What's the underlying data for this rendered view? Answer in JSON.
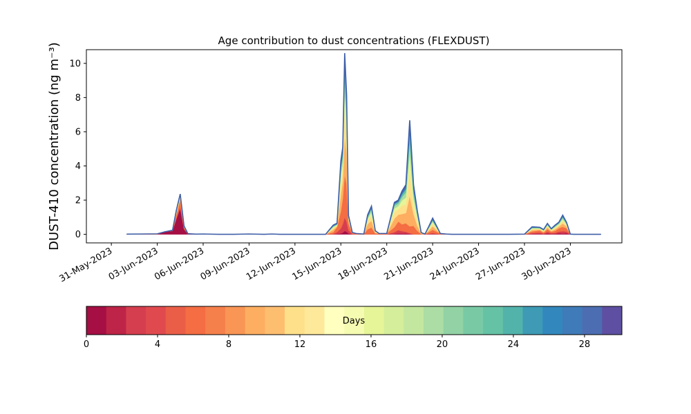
{
  "chart_data": {
    "type": "area",
    "stacked": true,
    "title": "Age contribution to dust concentrations (FLEXDUST)",
    "xlabel": "",
    "ylabel": "DUST-410 concentration (ng m⁻³)",
    "ylim": [
      -0.5,
      10.8
    ],
    "yticks": [
      0,
      2,
      4,
      6,
      8,
      10
    ],
    "xlim": [
      "2023-05-30",
      "2023-07-03"
    ],
    "xtick_labels": [
      "31-May-2023",
      "03-Jun-2023",
      "06-Jun-2023",
      "09-Jun-2023",
      "12-Jun-2023",
      "15-Jun-2023",
      "18-Jun-2023",
      "21-Jun-2023",
      "24-Jun-2023",
      "27-Jun-2023",
      "30-Jun-2023"
    ],
    "grid": false,
    "x": [
      "2023-06-01 00:00",
      "2023-06-02 00:00",
      "2023-06-03 00:00",
      "2023-06-03 12:00",
      "2023-06-04 00:00",
      "2023-06-04 06:00",
      "2023-06-04 12:00",
      "2023-06-04 18:00",
      "2023-06-05 00:00",
      "2023-06-05 12:00",
      "2023-06-06 00:00",
      "2023-06-07 00:00",
      "2023-06-08 00:00",
      "2023-06-09 00:00",
      "2023-06-10 00:00",
      "2023-06-10 12:00",
      "2023-06-11 00:00",
      "2023-06-12 00:00",
      "2023-06-12 12:00",
      "2023-06-13 00:00",
      "2023-06-14 00:00",
      "2023-06-14 12:00",
      "2023-06-14 18:00",
      "2023-06-15 00:00",
      "2023-06-15 03:00",
      "2023-06-15 06:00",
      "2023-06-15 09:00",
      "2023-06-15 12:00",
      "2023-06-15 18:00",
      "2023-06-16 00:00",
      "2023-06-16 12:00",
      "2023-06-16 18:00",
      "2023-06-17 00:00",
      "2023-06-17 06:00",
      "2023-06-17 12:00",
      "2023-06-18 00:00",
      "2023-06-18 12:00",
      "2023-06-18 18:00",
      "2023-06-19 00:00",
      "2023-06-19 06:00",
      "2023-06-19 12:00",
      "2023-06-19 18:00",
      "2023-06-20 00:00",
      "2023-06-20 06:00",
      "2023-06-20 12:00",
      "2023-06-20 18:00",
      "2023-06-21 00:00",
      "2023-06-21 12:00",
      "2023-06-22 00:00",
      "2023-06-22 06:00",
      "2023-06-22 12:00",
      "2023-06-22 18:00",
      "2023-06-23 00:00",
      "2023-06-24 00:00",
      "2023-06-25 00:00",
      "2023-06-26 00:00",
      "2023-06-27 00:00",
      "2023-06-27 12:00",
      "2023-06-28 00:00",
      "2023-06-28 06:00",
      "2023-06-28 12:00",
      "2023-06-28 18:00",
      "2023-06-29 00:00",
      "2023-06-29 06:00",
      "2023-06-29 12:00",
      "2023-06-29 18:00",
      "2023-06-30 00:00",
      "2023-06-30 06:00",
      "2023-06-30 12:00",
      "2023-06-30 18:00",
      "2023-07-01 00:00",
      "2023-07-02 00:00"
    ],
    "series": [
      {
        "values": [
          0,
          0,
          0,
          0.15,
          0.2,
          0.9,
          1.5,
          0.3,
          0.02,
          0,
          0,
          0,
          0,
          0,
          0,
          0,
          0,
          0,
          0,
          0,
          0,
          0,
          0.03,
          0.05,
          0.1,
          0.2,
          0.15,
          0.05,
          0,
          0,
          0,
          0,
          0,
          0,
          0,
          0,
          0.02,
          0.05,
          0.04,
          0.05,
          0.02,
          0,
          0,
          0,
          0,
          0.01,
          0.02,
          0,
          0,
          0,
          0,
          0,
          0,
          0,
          0,
          0,
          0,
          0.02,
          0.03,
          0.01,
          0.05,
          0.02,
          0.03,
          0.06,
          0.04,
          0.06,
          0,
          0,
          0,
          0,
          0,
          0
        ],
        "color": "#a50f44"
      },
      {
        "values": [
          0,
          0,
          0,
          0,
          0,
          0.05,
          0.1,
          0.02,
          0,
          0,
          0,
          0,
          0,
          0,
          0,
          0,
          0,
          0,
          0,
          0,
          0,
          0.02,
          0.1,
          0.3,
          0.5,
          0.8,
          0.6,
          0.2,
          0.02,
          0,
          0,
          0,
          0,
          0,
          0,
          0,
          0.1,
          0.2,
          0.15,
          0.1,
          0.05,
          0,
          0,
          0,
          0,
          0.02,
          0.05,
          0,
          0,
          0,
          0,
          0,
          0,
          0,
          0,
          0,
          0,
          0.05,
          0.08,
          0.03,
          0.1,
          0.05,
          0.05,
          0.1,
          0.15,
          0.1,
          0,
          0,
          0,
          0,
          0,
          0
        ],
        "color": "#d63e4f"
      },
      {
        "values": [
          0.01,
          0.02,
          0.03,
          0,
          0.04,
          0.2,
          0.4,
          0.08,
          0.02,
          0.01,
          0.02,
          0,
          0,
          0.02,
          0,
          0.02,
          0,
          0,
          0,
          0,
          0,
          0.1,
          0.3,
          1.0,
          1.5,
          2.5,
          2.2,
          0.4,
          0.05,
          0.05,
          0.02,
          0.3,
          0.4,
          0.05,
          0.05,
          0.05,
          0.3,
          0.5,
          0.4,
          0.5,
          0.4,
          0.5,
          0.2,
          0.02,
          0.02,
          0.1,
          0.2,
          0.05,
          0.01,
          0,
          0,
          0,
          0,
          0,
          0,
          0,
          0.01,
          0.1,
          0.12,
          0.06,
          0.15,
          0.08,
          0.12,
          0.2,
          0.25,
          0.2,
          0.01,
          0,
          0,
          0,
          0,
          0
        ],
        "color": "#f46d43"
      },
      {
        "values": [
          0,
          0,
          0,
          0,
          0,
          0.08,
          0.15,
          0.03,
          0,
          0,
          0,
          0,
          0,
          0,
          0,
          0,
          0,
          0,
          0,
          0,
          0,
          0.15,
          0.05,
          1.0,
          1.0,
          2.3,
          1.8,
          0.2,
          0.02,
          0,
          0,
          0.3,
          0.4,
          0.05,
          0,
          0,
          0.5,
          0.4,
          0.6,
          0.6,
          1.8,
          0.7,
          0.3,
          0.02,
          0,
          0.1,
          0.2,
          0,
          0,
          0,
          0,
          0,
          0,
          0,
          0,
          0,
          0,
          0.08,
          0.05,
          0.05,
          0.1,
          0.05,
          0.1,
          0.1,
          0.2,
          0.1,
          0,
          0,
          0,
          0,
          0,
          0
        ],
        "color": "#fdae61"
      },
      {
        "values": [
          0,
          0,
          0,
          0,
          0,
          0.05,
          0.1,
          0.02,
          0,
          0,
          0,
          0,
          0,
          0,
          0,
          0,
          0,
          0,
          0,
          0,
          0,
          0.1,
          0.05,
          0.7,
          0.7,
          1.6,
          1.2,
          0.1,
          0.02,
          0,
          0,
          0.2,
          0.3,
          0.05,
          0,
          0,
          0.4,
          0.3,
          0.5,
          0.5,
          1.5,
          0.5,
          0.3,
          0.02,
          0,
          0.08,
          0.15,
          0,
          0,
          0,
          0,
          0,
          0,
          0,
          0,
          0,
          0,
          0.06,
          0.04,
          0.04,
          0.08,
          0.04,
          0.08,
          0.08,
          0.15,
          0.08,
          0,
          0,
          0,
          0,
          0,
          0
        ],
        "color": "#fee08b"
      },
      {
        "values": [
          0,
          0,
          0,
          0,
          0,
          0.04,
          0.05,
          0.01,
          0,
          0,
          0,
          0,
          0,
          0,
          0,
          0,
          0,
          0,
          0,
          0,
          0,
          0.05,
          0.03,
          0.4,
          0.4,
          1.0,
          0.7,
          0.05,
          0,
          0,
          0,
          0.1,
          0.2,
          0.02,
          0,
          0,
          0.2,
          0.2,
          0.3,
          0.4,
          1.0,
          0.4,
          0.2,
          0.01,
          0,
          0.05,
          0.1,
          0,
          0,
          0,
          0,
          0,
          0,
          0,
          0,
          0,
          0,
          0.04,
          0.03,
          0.03,
          0.05,
          0.03,
          0.05,
          0.06,
          0.1,
          0.05,
          0,
          0,
          0,
          0,
          0,
          0
        ],
        "color": "#e6f598"
      },
      {
        "values": [
          0,
          0,
          0,
          0,
          0,
          0.03,
          0.02,
          0.01,
          0,
          0,
          0,
          0,
          0,
          0,
          0,
          0,
          0,
          0,
          0,
          0,
          0,
          0.04,
          0.02,
          0.3,
          0.3,
          0.8,
          0.5,
          0.03,
          0,
          0,
          0,
          0.08,
          0.15,
          0.01,
          0,
          0,
          0.15,
          0.15,
          0.2,
          0.3,
          0.7,
          0.3,
          0.15,
          0.01,
          0,
          0.04,
          0.08,
          0,
          0,
          0,
          0,
          0,
          0,
          0,
          0,
          0,
          0,
          0.03,
          0.02,
          0.02,
          0.04,
          0.02,
          0.04,
          0.04,
          0.08,
          0.04,
          0,
          0,
          0,
          0,
          0,
          0
        ],
        "color": "#abdda4"
      },
      {
        "values": [
          0,
          0,
          0,
          0,
          0,
          0.02,
          0.02,
          0.01,
          0,
          0,
          0,
          0,
          0,
          0,
          0,
          0,
          0,
          0,
          0,
          0,
          0,
          0.03,
          0.02,
          0.2,
          0.2,
          0.6,
          0.4,
          0.03,
          0,
          0,
          0,
          0.06,
          0.1,
          0.01,
          0,
          0,
          0.1,
          0.1,
          0.15,
          0.2,
          0.5,
          0.2,
          0.1,
          0.01,
          0,
          0.03,
          0.05,
          0,
          0,
          0,
          0,
          0,
          0,
          0,
          0,
          0,
          0,
          0.02,
          0.02,
          0.02,
          0.03,
          0.02,
          0.03,
          0.03,
          0.06,
          0.03,
          0,
          0,
          0,
          0,
          0,
          0
        ],
        "color": "#66c2a5"
      },
      {
        "values": [
          0,
          0,
          0,
          0,
          0,
          0.03,
          0.01,
          0.01,
          0,
          0,
          0,
          0,
          0,
          0,
          0,
          0,
          0,
          0,
          0,
          0,
          0,
          0.03,
          0.03,
          0.2,
          0.2,
          0.4,
          0.3,
          0.02,
          0,
          0,
          0,
          0.05,
          0.05,
          0.01,
          0,
          0,
          0.05,
          0.05,
          0.1,
          0.15,
          0.4,
          0.15,
          0.05,
          0.01,
          0,
          0.02,
          0.05,
          0,
          0,
          0,
          0,
          0,
          0,
          0,
          0,
          0,
          0,
          0.02,
          0.01,
          0.01,
          0.02,
          0.01,
          0.02,
          0.02,
          0.05,
          0.02,
          0,
          0,
          0,
          0,
          0,
          0
        ],
        "color": "#3288bd"
      },
      {
        "values": [
          0,
          0,
          0,
          0,
          0,
          0.02,
          0.01,
          0,
          0,
          0,
          0,
          0,
          0,
          0,
          0,
          0,
          0,
          0,
          0,
          0,
          0,
          0.02,
          0.02,
          0.15,
          0.2,
          0.4,
          0.3,
          0.02,
          0,
          0,
          0,
          0.05,
          0.05,
          0.01,
          0,
          0,
          0.05,
          0.05,
          0.1,
          0.1,
          0.3,
          0.15,
          0.05,
          0,
          0,
          0.02,
          0.05,
          0,
          0,
          0,
          0,
          0,
          0,
          0,
          0,
          0,
          0,
          0.02,
          0.01,
          0.01,
          0.02,
          0.01,
          0.02,
          0.02,
          0.04,
          0.02,
          0,
          0,
          0,
          0,
          0,
          0
        ],
        "color": "#5e4fa2"
      }
    ],
    "colorbar": {
      "label": "Days",
      "range": [
        0,
        30
      ],
      "ticks": [
        0,
        4,
        8,
        12,
        16,
        20,
        24,
        28
      ],
      "colors": [
        "#a50f44",
        "#be2447",
        "#d53e4f",
        "#e04a4f",
        "#ea5e48",
        "#f46d43",
        "#f6804c",
        "#f99555",
        "#fdae61",
        "#fdbe70",
        "#fee08b",
        "#fee99a",
        "#ffffbf",
        "#f6fbb2",
        "#e6f598",
        "#d5ee9b",
        "#c4e79f",
        "#abdda4",
        "#92d2a4",
        "#79c9a5",
        "#66c2a5",
        "#52b3ab",
        "#3e9ab5",
        "#3288bd",
        "#3f7bb8",
        "#4d6db2",
        "#5e4fa2"
      ]
    }
  }
}
